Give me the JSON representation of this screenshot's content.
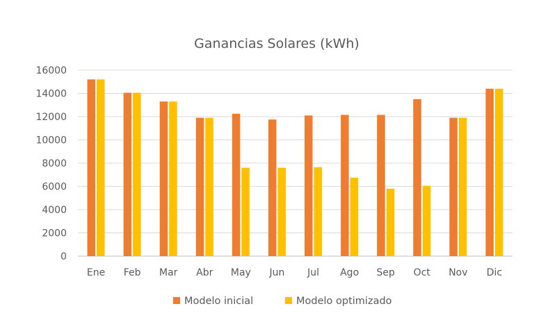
{
  "chart_data": {
    "type": "bar",
    "title": "Ganancias Solares (kWh)",
    "xlabel": "",
    "ylabel": "",
    "categories": [
      "Ene",
      "Feb",
      "Mar",
      "Abr",
      "May",
      "Jun",
      "Jul",
      "Ago",
      "Sep",
      "Oct",
      "Nov",
      "Dic"
    ],
    "series": [
      {
        "name": "Modelo inicial",
        "color": "#ED7D31",
        "values": [
          15200,
          14050,
          13300,
          11900,
          12250,
          11750,
          12100,
          12150,
          12150,
          13500,
          11900,
          14400
        ]
      },
      {
        "name": "Modelo optimizado",
        "color": "#FFC000",
        "values": [
          15200,
          14050,
          13300,
          11900,
          7600,
          7600,
          7650,
          6750,
          5800,
          6050,
          11900,
          14400
        ]
      }
    ],
    "ylim": [
      0,
      16000
    ],
    "yticks": [
      "0",
      "2000",
      "4000",
      "6000",
      "8000",
      "10000",
      "12000",
      "14000",
      "16000"
    ],
    "grid": true,
    "legend_position": "bottom"
  }
}
